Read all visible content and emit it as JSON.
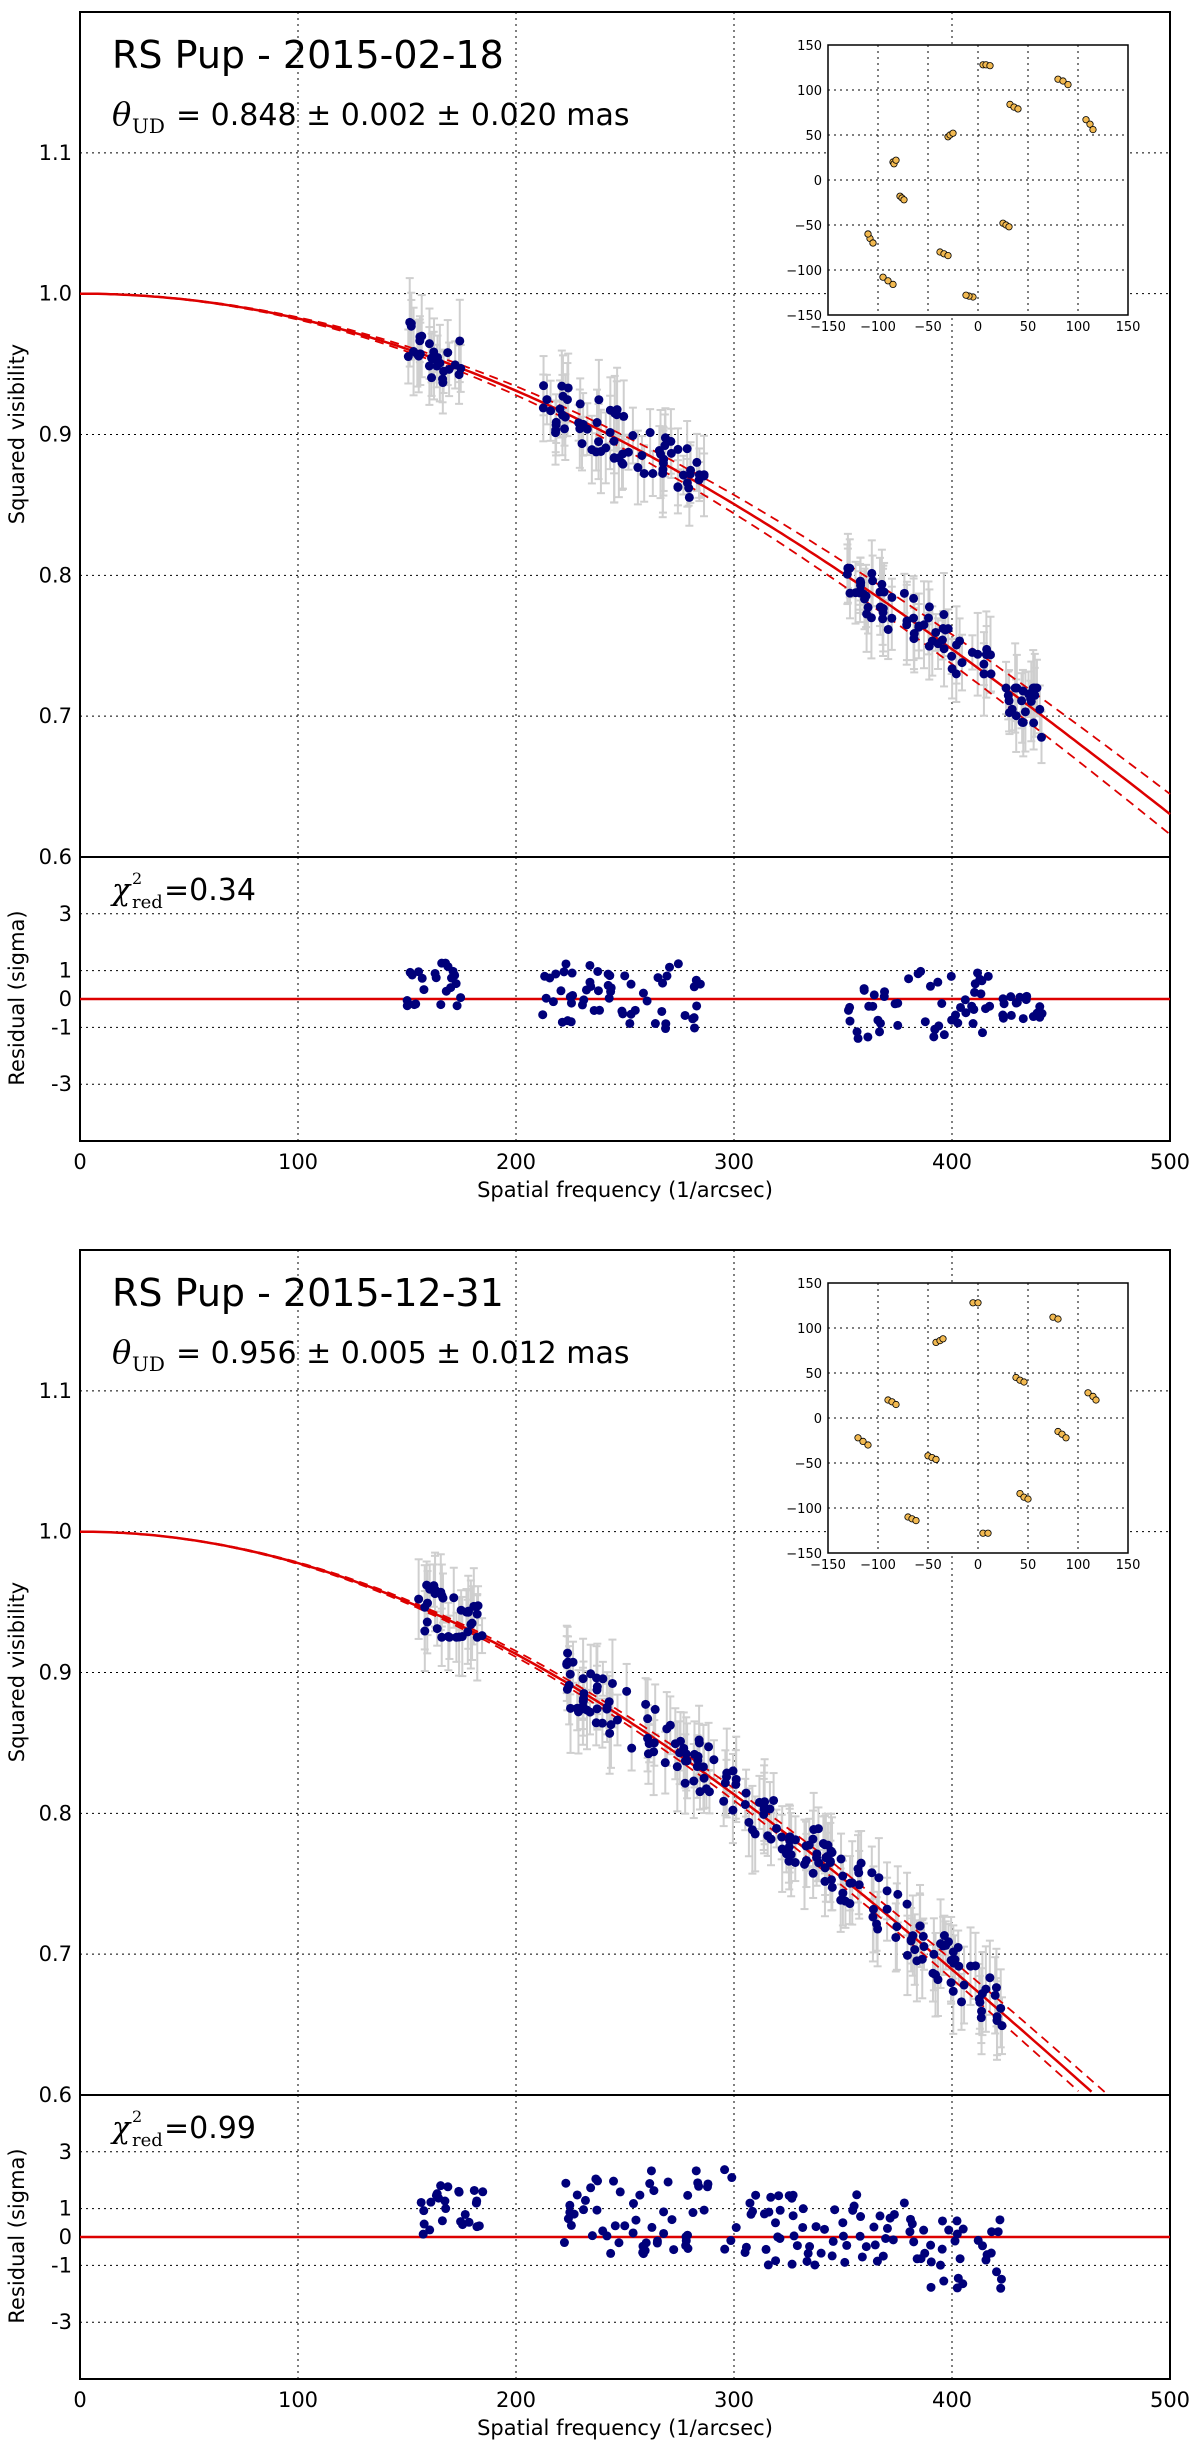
{
  "chart_data": [
    {
      "type": "scatter",
      "title": "RS Pup - 2015-02-18",
      "theta_label": {
        "symbol": "θ",
        "sub": "UD",
        "text": "= 0.848 ± 0.002  ± 0.020 mas"
      },
      "ylabel": "Squared visibility",
      "xlim": [
        0,
        500
      ],
      "ylim": [
        0.6,
        1.2
      ],
      "yticks": [
        0.6,
        0.7,
        0.8,
        0.9,
        1.0,
        1.1
      ],
      "fit": {
        "theta_mas": 0.848,
        "sigma_mas": 0.02,
        "color": "#dd0000"
      },
      "data_color": "#00007a",
      "errorbar_color": "#cfcfcf",
      "groups": [
        {
          "x": [
            150,
            175
          ],
          "y": [
            0.935,
            0.985
          ]
        },
        {
          "x": [
            212,
            287
          ],
          "y": [
            0.855,
            0.945
          ]
        },
        {
          "x": [
            352,
            418
          ],
          "y": [
            0.73,
            0.805
          ]
        },
        {
          "x": [
            423,
            442
          ],
          "y": [
            0.685,
            0.72
          ]
        }
      ],
      "residual": {
        "label_symbol": "χ",
        "label_sup": "2",
        "label_sub": "red",
        "label_value": "=0.34",
        "ylabel": "Residual (sigma)",
        "ylim": [
          -5,
          5
        ],
        "yticks": [
          -3,
          -1,
          0,
          1,
          3
        ],
        "groups": [
          {
            "x": [
              150,
              175
            ],
            "y": [
              -0.4,
              1.3
            ]
          },
          {
            "x": [
              212,
              287
            ],
            "y": [
              -1.1,
              1.3
            ]
          },
          {
            "x": [
              352,
              418
            ],
            "y": [
              -1.4,
              1.0
            ]
          },
          {
            "x": [
              423,
              442
            ],
            "y": [
              -0.7,
              0.1
            ]
          }
        ]
      },
      "xlabel": "Spatial frequency (1/arcsec)",
      "xticks": [
        0,
        100,
        200,
        300,
        400,
        500
      ],
      "inset": {
        "lim": [
          -150,
          150
        ],
        "ticks": [
          -150,
          -100,
          -50,
          0,
          50,
          100,
          150
        ],
        "points": [
          [
            5,
            128
          ],
          [
            8,
            128
          ],
          [
            12,
            127
          ],
          [
            -5,
            -130
          ],
          [
            -9,
            -129
          ],
          [
            -12,
            -128
          ],
          [
            80,
            112
          ],
          [
            85,
            110
          ],
          [
            90,
            106
          ],
          [
            108,
            67
          ],
          [
            112,
            62
          ],
          [
            115,
            56
          ],
          [
            32,
            84
          ],
          [
            36,
            81
          ],
          [
            40,
            79
          ],
          [
            -30,
            48
          ],
          [
            -28,
            50
          ],
          [
            -25,
            52
          ],
          [
            -85,
            20
          ],
          [
            -84,
            18
          ],
          [
            -82,
            22
          ],
          [
            -78,
            -18
          ],
          [
            -76,
            -20
          ],
          [
            -74,
            -22
          ],
          [
            -110,
            -60
          ],
          [
            -108,
            -65
          ],
          [
            -105,
            -70
          ],
          [
            -95,
            -108
          ],
          [
            -90,
            -112
          ],
          [
            -85,
            -116
          ],
          [
            -38,
            -80
          ],
          [
            -34,
            -82
          ],
          [
            -30,
            -84
          ],
          [
            25,
            -48
          ],
          [
            28,
            -50
          ],
          [
            31,
            -52
          ],
          [
            -110,
            -60
          ],
          [
            -105,
            -70
          ]
        ],
        "point_color": "#f2b950"
      }
    },
    {
      "type": "scatter",
      "title": "RS Pup - 2015-12-31",
      "theta_label": {
        "symbol": "θ",
        "sub": "UD",
        "text": "= 0.956 ± 0.005  ± 0.012 mas"
      },
      "ylabel": "Squared visibility",
      "xlim": [
        0,
        500
      ],
      "ylim": [
        0.6,
        1.2
      ],
      "yticks": [
        0.6,
        0.7,
        0.8,
        0.9,
        1.0,
        1.1
      ],
      "fit": {
        "theta_mas": 0.956,
        "sigma_mas": 0.012,
        "color": "#dd0000"
      },
      "data_color": "#00007a",
      "errorbar_color": "#cfcfcf",
      "groups": [
        {
          "x": [
            155,
            185
          ],
          "y": [
            0.925,
            0.985
          ]
        },
        {
          "x": [
            222,
            302
          ],
          "y": [
            0.8,
            0.915
          ]
        },
        {
          "x": [
            305,
            380
          ],
          "y": [
            0.68,
            0.82
          ]
        },
        {
          "x": [
            380,
            423
          ],
          "y": [
            0.62,
            0.72
          ]
        }
      ],
      "residual": {
        "label_symbol": "χ",
        "label_sup": "2",
        "label_sub": "red",
        "label_value": "=0.99",
        "ylabel": "Residual (sigma)",
        "ylim": [
          -5,
          5
        ],
        "yticks": [
          -3,
          -1,
          0,
          1,
          3
        ],
        "groups": [
          {
            "x": [
              155,
              185
            ],
            "y": [
              0.1,
              1.9
            ]
          },
          {
            "x": [
              222,
              302
            ],
            "y": [
              -0.6,
              2.5
            ]
          },
          {
            "x": [
              305,
              380
            ],
            "y": [
              -1.0,
              1.5
            ]
          },
          {
            "x": [
              380,
              423
            ],
            "y": [
              -1.9,
              0.7
            ]
          }
        ]
      },
      "xlabel": "Spatial frequency (1/arcsec)",
      "xticks": [
        0,
        100,
        200,
        300,
        400,
        500
      ],
      "inset": {
        "lim": [
          -150,
          150
        ],
        "ticks": [
          -150,
          -100,
          -50,
          0,
          50,
          100,
          150
        ],
        "points": [
          [
            -5,
            128
          ],
          [
            0,
            128
          ],
          [
            5,
            -128
          ],
          [
            10,
            -128
          ],
          [
            -42,
            84
          ],
          [
            -38,
            86
          ],
          [
            -35,
            88
          ],
          [
            -90,
            20
          ],
          [
            -86,
            18
          ],
          [
            -82,
            15
          ],
          [
            -120,
            -22
          ],
          [
            -115,
            -26
          ],
          [
            -110,
            -30
          ],
          [
            -70,
            -110
          ],
          [
            -66,
            -112
          ],
          [
            -62,
            -114
          ],
          [
            -50,
            -42
          ],
          [
            -46,
            -44
          ],
          [
            -42,
            -46
          ],
          [
            38,
            45
          ],
          [
            42,
            42
          ],
          [
            46,
            40
          ],
          [
            75,
            112
          ],
          [
            80,
            110
          ],
          [
            110,
            28
          ],
          [
            115,
            24
          ],
          [
            118,
            20
          ],
          [
            80,
            -15
          ],
          [
            84,
            -18
          ],
          [
            88,
            -22
          ],
          [
            42,
            -84
          ],
          [
            46,
            -88
          ],
          [
            50,
            -90
          ]
        ],
        "point_color": "#f2b950"
      }
    }
  ]
}
